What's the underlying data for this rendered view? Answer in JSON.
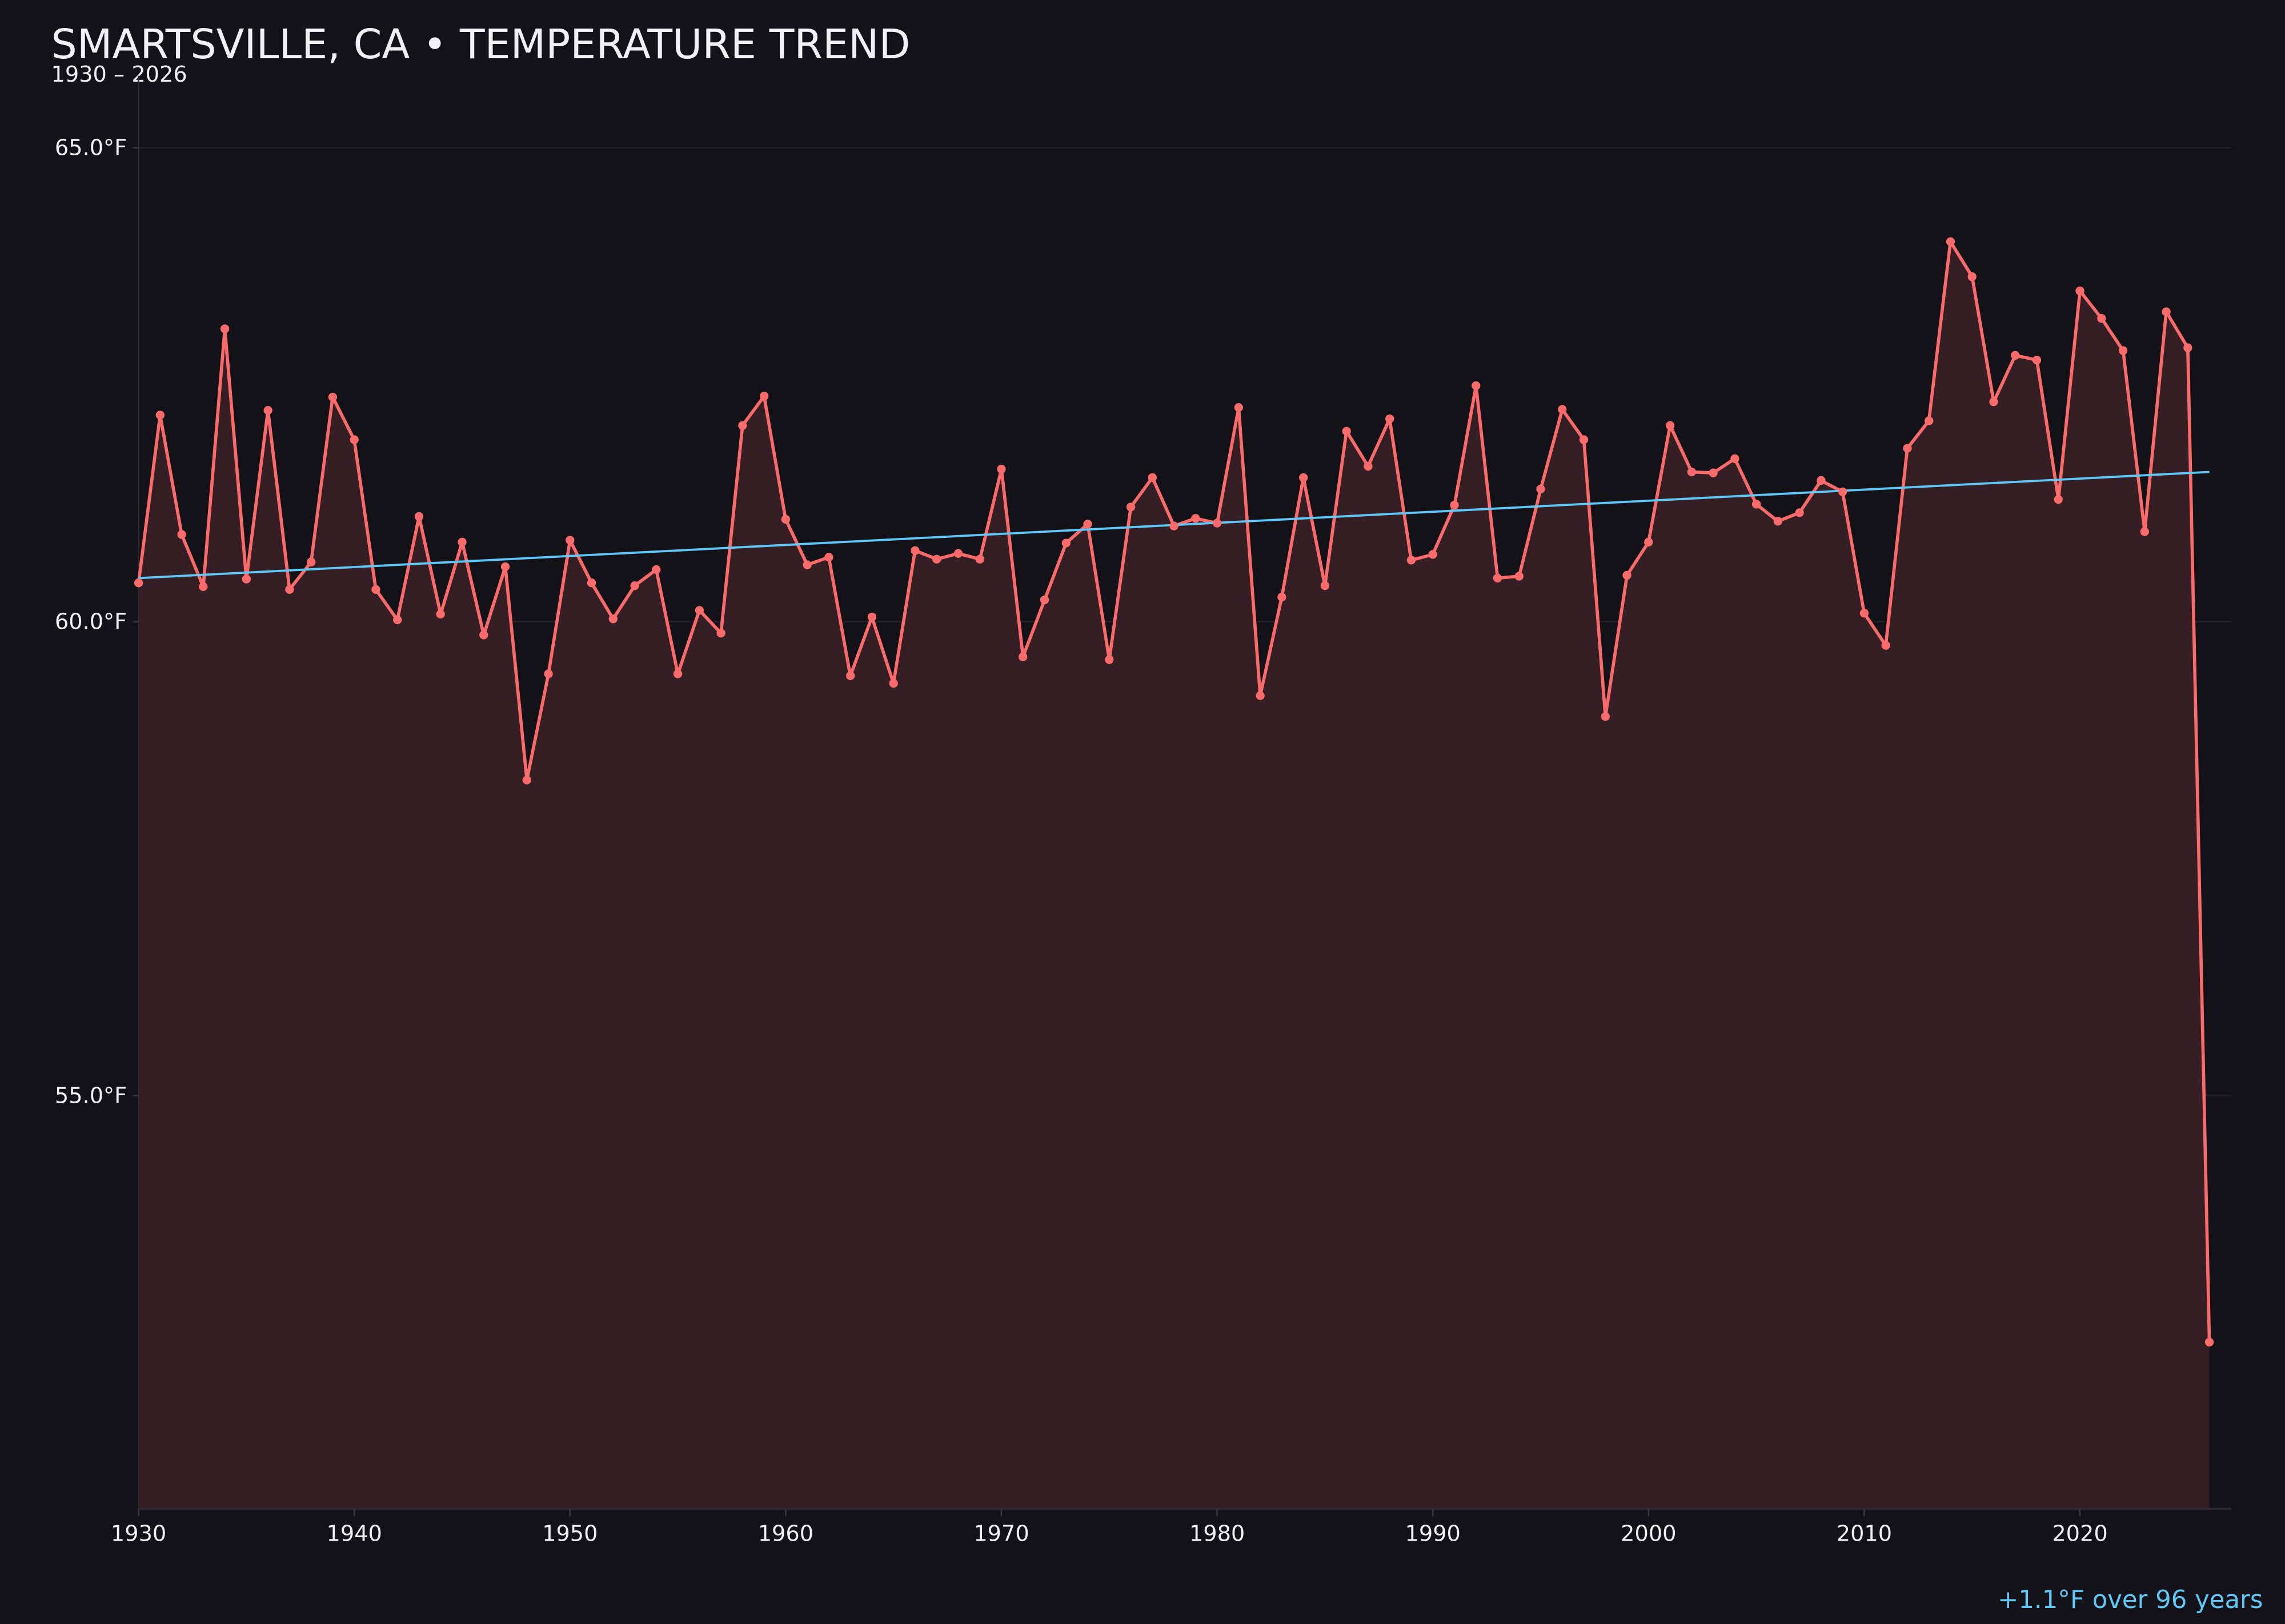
{
  "chart_data": {
    "type": "line",
    "title": "SMARTSVILLE, CA • TEMPERATURE TREND",
    "subtitle": "1930 – 2026",
    "annotation": "+1.1°F over 96 years",
    "xlim": [
      1930,
      2027
    ],
    "ylim": [
      50.64,
      65.76
    ],
    "x_ticks": [
      1930,
      1940,
      1950,
      1960,
      1970,
      1980,
      1990,
      2000,
      2010,
      2020
    ],
    "y_ticks": [
      55,
      60,
      65
    ],
    "y_tick_labels": [
      "55.0°F",
      "60.0°F",
      "65.0°F"
    ],
    "grid": true,
    "colors": {
      "background": "#131218",
      "line": "#ff6b6b",
      "fill": "#351f25",
      "trend": "#5fc8f8",
      "text": "#f0f0f5"
    },
    "x": [
      1930,
      1931,
      1932,
      1933,
      1934,
      1935,
      1936,
      1937,
      1938,
      1939,
      1940,
      1941,
      1942,
      1943,
      1944,
      1945,
      1946,
      1947,
      1948,
      1949,
      1950,
      1951,
      1952,
      1953,
      1954,
      1955,
      1956,
      1957,
      1958,
      1959,
      1960,
      1961,
      1962,
      1963,
      1964,
      1965,
      1966,
      1967,
      1968,
      1969,
      1970,
      1971,
      1972,
      1973,
      1974,
      1975,
      1976,
      1977,
      1978,
      1979,
      1980,
      1981,
      1982,
      1983,
      1984,
      1985,
      1986,
      1987,
      1988,
      1989,
      1990,
      1991,
      1992,
      1993,
      1994,
      1995,
      1996,
      1997,
      1998,
      1999,
      2000,
      2001,
      2002,
      2003,
      2004,
      2005,
      2006,
      2007,
      2008,
      2009,
      2010,
      2011,
      2012,
      2013,
      2014,
      2015,
      2016,
      2017,
      2018,
      2019,
      2020,
      2021,
      2022,
      2023,
      2024,
      2025,
      2026
    ],
    "values": [
      60.41,
      62.18,
      60.92,
      60.37,
      63.09,
      60.45,
      62.23,
      60.34,
      60.63,
      62.37,
      61.92,
      60.34,
      60.02,
      61.11,
      60.08,
      60.84,
      59.86,
      60.58,
      58.33,
      59.45,
      60.86,
      60.41,
      60.03,
      60.38,
      60.55,
      59.45,
      60.12,
      59.88,
      62.07,
      62.38,
      61.08,
      60.6,
      60.68,
      59.43,
      60.05,
      59.35,
      60.75,
      60.66,
      60.72,
      60.66,
      61.61,
      59.63,
      60.23,
      60.83,
      61.03,
      59.6,
      61.21,
      61.52,
      61.01,
      61.09,
      61.04,
      62.26,
      59.22,
      60.26,
      61.52,
      60.38,
      62.01,
      61.64,
      62.14,
      60.65,
      60.71,
      61.23,
      62.49,
      60.46,
      60.48,
      61.4,
      62.24,
      61.92,
      59.0,
      60.49,
      60.84,
      62.07,
      61.58,
      61.57,
      61.72,
      61.24,
      61.06,
      61.15,
      61.49,
      61.37,
      60.09,
      59.75,
      61.83,
      62.12,
      64.01,
      63.64,
      62.32,
      62.81,
      62.76,
      61.29,
      63.49,
      63.2,
      62.86,
      60.95,
      63.27,
      62.89,
      52.4
    ],
    "trend": {
      "x": [
        1930,
        2026
      ],
      "y": [
        60.46,
        61.58
      ]
    }
  }
}
